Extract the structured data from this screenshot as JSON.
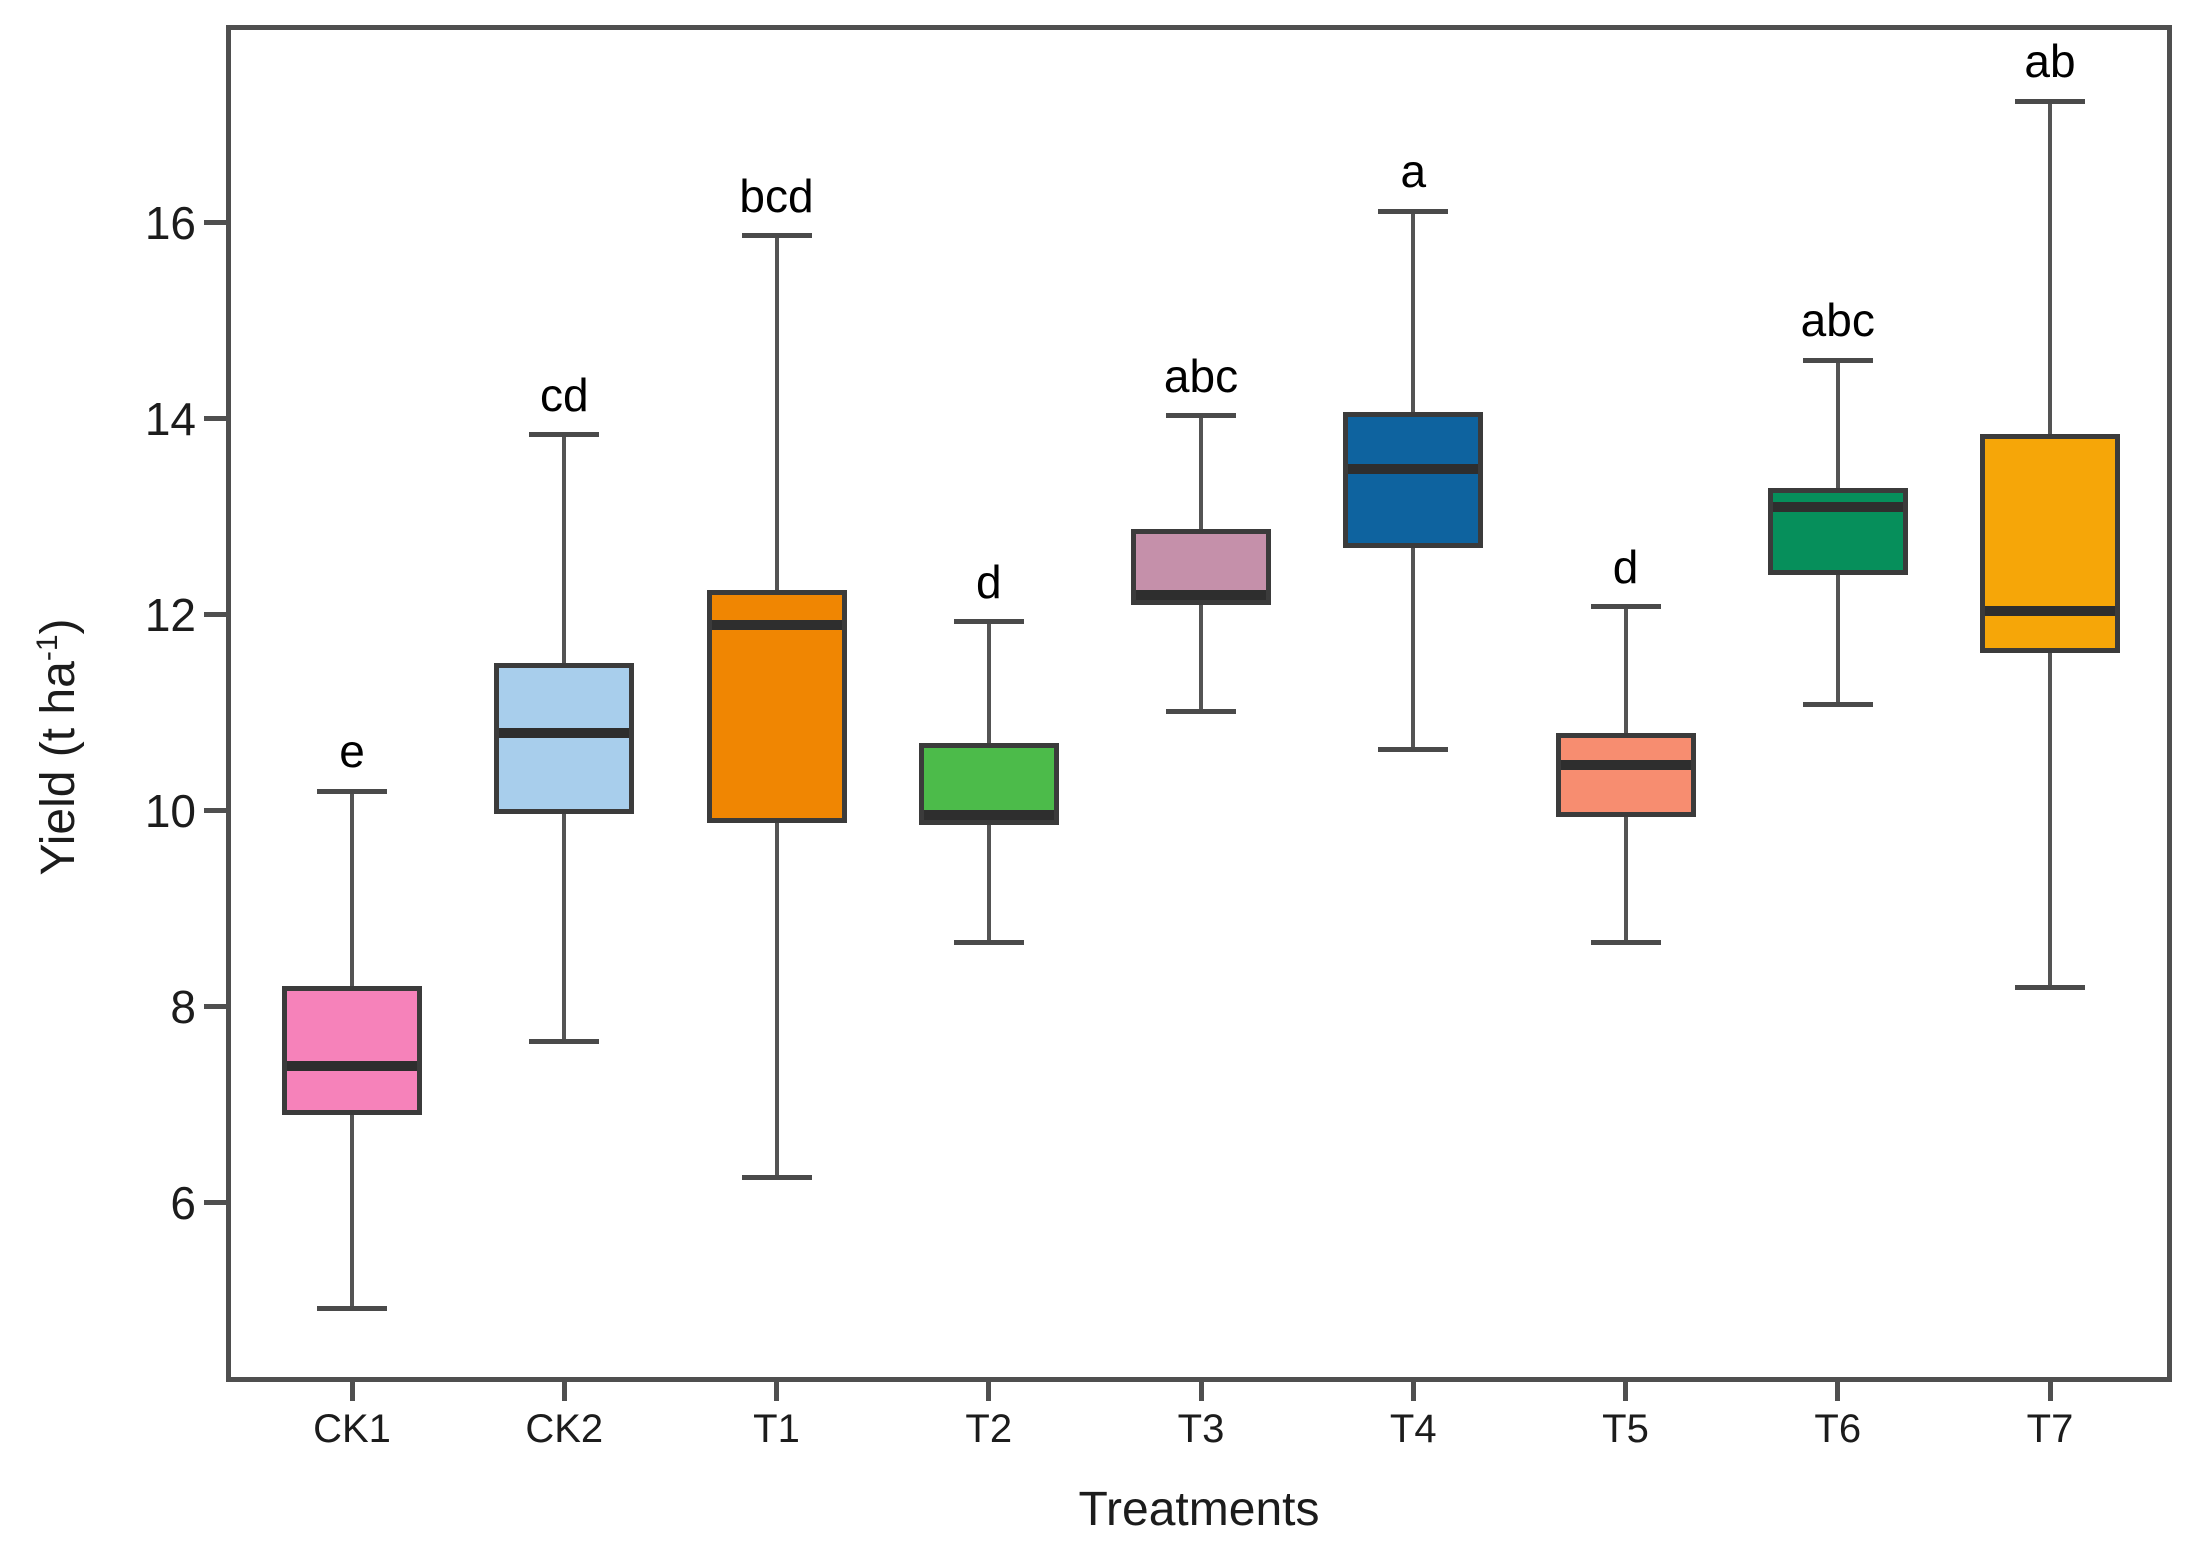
{
  "chart_data": {
    "type": "boxplot",
    "title": "",
    "xlabel": "Treatments",
    "ylabel": "Yield (t ha⁻¹)",
    "ylabel_parts": {
      "pre": "Yield (t ha",
      "sup": "-1",
      "post": ")"
    },
    "ylim": [
      4.2,
      18.0
    ],
    "yticks": [
      "16",
      "14",
      "12",
      "10",
      "8",
      "6"
    ],
    "ytick_values": [
      16,
      14,
      12,
      10,
      8,
      6
    ],
    "grid": "off",
    "legend": "none",
    "categories": [
      "CK1",
      "CK2",
      "T1",
      "T2",
      "T3",
      "T4",
      "T5",
      "T6",
      "T7"
    ],
    "series": [
      {
        "label": "CK1",
        "letter": "e",
        "color": "#F682BA",
        "whisker_low": 4.92,
        "q1": 6.89,
        "median": 7.39,
        "q3": 8.21,
        "whisker_high": 10.2
      },
      {
        "label": "CK2",
        "letter": "cd",
        "color": "#A8CEEC",
        "whisker_low": 7.65,
        "q1": 9.97,
        "median": 10.79,
        "q3": 11.51,
        "whisker_high": 13.84
      },
      {
        "label": "T1",
        "letter": "bcd",
        "color": "#F08602",
        "whisker_low": 6.26,
        "q1": 9.87,
        "median": 11.9,
        "q3": 12.25,
        "whisker_high": 15.87
      },
      {
        "label": "T2",
        "letter": "d",
        "color": "#4CBB4A",
        "whisker_low": 8.66,
        "q1": 9.85,
        "median": 9.94,
        "q3": 10.69,
        "whisker_high": 11.93
      },
      {
        "label": "T3",
        "letter": "abc",
        "color": "#C590AA",
        "whisker_low": 11.01,
        "q1": 12.1,
        "median": 12.18,
        "q3": 12.88,
        "whisker_high": 14.03
      },
      {
        "label": "T4",
        "letter": "a",
        "color": "#0E639F",
        "whisker_low": 10.63,
        "q1": 12.68,
        "median": 13.49,
        "q3": 14.07,
        "whisker_high": 16.12
      },
      {
        "label": "T5",
        "letter": "d",
        "color": "#F78D70",
        "whisker_low": 8.66,
        "q1": 9.94,
        "median": 10.47,
        "q3": 10.79,
        "whisker_high": 12.08
      },
      {
        "label": "T6",
        "letter": "abc",
        "color": "#068F5B",
        "whisker_low": 11.08,
        "q1": 12.41,
        "median": 13.1,
        "q3": 13.29,
        "whisker_high": 14.6
      },
      {
        "label": "T7",
        "letter": "ab",
        "color": "#F6A608",
        "whisker_low": 8.2,
        "q1": 11.61,
        "median": 12.04,
        "q3": 13.85,
        "whisker_high": 17.24
      }
    ],
    "style": {
      "box_border_color": "#3b3b3b",
      "median_color": "#2e2e2e",
      "whisker_color": "#545454",
      "frame_color": "#4f4f4f",
      "text_color": "#1c1c1c",
      "background": "#ffffff"
    }
  }
}
